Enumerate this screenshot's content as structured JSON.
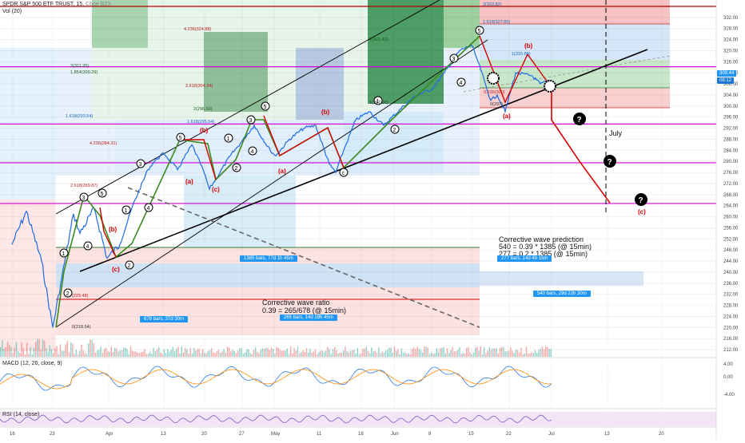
{
  "header": {
    "symbol": "SPDR S&P 500 ETF TRUST, 15,",
    "exchange": "Cboe BZX",
    "indicator": "Vol (20)"
  },
  "macd_label": "MACD (12, 26, close, 9)",
  "rsi_label": "RSI (14, close)",
  "price_tags": {
    "last": "309.44",
    "countdown": "08:12"
  },
  "annotations": {
    "corrective_ratio_title": "Corrective wave ratio",
    "corrective_ratio_formula": "0.39 = 265/678 (@ 15min)",
    "prediction_title": "Corrective wave prediction",
    "prediction_line1": "540 = 0.39 * 1385 (@ 15min)",
    "prediction_line2": "277 = 0.2 * 1385 (@ 15min)",
    "july": "July"
  },
  "range_tags": {
    "t1385": "1385 bars, 77d 1h 45m",
    "t678": "678 bars, 37d 30m",
    "t265": "265 bars, 14d 18h 45m",
    "t277": "277 bars, 14d 4h 15m",
    "t540": "540 bars, 29d 22h 30m"
  },
  "fib_labels": {
    "f1": "2(333.82)",
    "f2": "1.618(327.85)",
    "f3": "4.236(324.88)",
    "f4": "2(321.42)",
    "f5": "2(311.25)",
    "f6": "1.854(309.29)",
    "f7": "2.618(304.34)",
    "f8": "2(296.50)",
    "f9": "1.618(295.54)",
    "f10": "1.618(293.54)",
    "f11": "4.236(284.31)",
    "f12": "2.618(269.87)",
    "f13": "1(297.90)",
    "f14": "0(218.54)",
    "f15": "(229.48)",
    "f16": "1(315.89)",
    "f17": "0.236(300)",
    "f18": "0(297)"
  },
  "wave_labels": {
    "a1": "(a)",
    "b1": "(b)",
    "c1": "(c)",
    "a2": "(a)",
    "b2": "(b)",
    "c2": "(c)",
    "a3": "(a)",
    "b3": "(b)",
    "c3": "(c)",
    "a4": "(a)",
    "b4": "(b)",
    "c4": "(c)"
  },
  "colors": {
    "price_line": "#1e6be0",
    "wave_green": "#3a8a1f",
    "wave_red": "#d50000",
    "magenta": "#d400d4",
    "trend": "#000000",
    "macd": "#2a7be6",
    "signal": "#ff8a00",
    "rsi": "#7e57c2"
  },
  "chart_data": {
    "type": "line",
    "title": "SPDR S&P 500 ETF TRUST, 15",
    "ylim": [
      210,
      336
    ],
    "y_ticks": [
      212,
      216,
      220,
      224,
      228,
      232,
      236,
      240,
      244,
      248,
      252,
      256,
      260,
      264,
      268,
      272,
      276,
      280,
      284,
      288,
      292,
      296,
      300,
      304,
      308,
      312,
      316,
      320,
      324,
      328,
      332
    ],
    "x_ticks": [
      "16",
      "23",
      "Apr",
      "13",
      "20",
      "27",
      "May",
      "11",
      "18",
      "Jun",
      "8",
      "15",
      "22",
      "Jul",
      "13",
      "20"
    ],
    "horizontal_levels": [
      314.2,
      293.5,
      279.5,
      264.8
    ],
    "series": [
      {
        "name": "SPY",
        "x": [
          "Mar 16",
          "Mar 18",
          "Mar 20",
          "Mar 23",
          "Mar 24",
          "Mar 26",
          "Mar 27",
          "Mar 30",
          "Apr 1",
          "Apr 3",
          "Apr 6",
          "Apr 8",
          "Apr 9",
          "Apr 13",
          "Apr 15",
          "Apr 17",
          "Apr 20",
          "Apr 21",
          "Apr 24",
          "Apr 27",
          "Apr 29",
          "May 1",
          "May 4",
          "May 6",
          "May 8",
          "May 11",
          "May 13",
          "May 14",
          "May 15",
          "May 18",
          "May 20",
          "May 22",
          "May 26",
          "May 28",
          "Jun 1",
          "Jun 3",
          "Jun 5",
          "Jun 8",
          "Jun 9",
          "Jun 11",
          "Jun 12",
          "Jun 15",
          "Jun 16",
          "Jun 18",
          "Jun 19",
          "Jun 22"
        ],
        "values": [
          250,
          262,
          244,
          220,
          236,
          261,
          254,
          263,
          245,
          250,
          264,
          277,
          280,
          283,
          277,
          286,
          277,
          270,
          282,
          287,
          293,
          284,
          282,
          288,
          292,
          293,
          279,
          276,
          284,
          295,
          298,
          293,
          300,
          304,
          306,
          312,
          320,
          322,
          316,
          302,
          304,
          298,
          312,
          311,
          308,
          309.4
        ]
      }
    ],
    "projection": {
      "name": "corrective wave (c)",
      "x": [
        "Jun 22",
        "Jul 2",
        "Jul 8"
      ],
      "values": [
        295,
        280,
        265
      ]
    },
    "macd": {
      "ylim": [
        -6,
        6
      ],
      "ticks": [
        "4.00",
        "0.00",
        "-4.00"
      ]
    }
  }
}
